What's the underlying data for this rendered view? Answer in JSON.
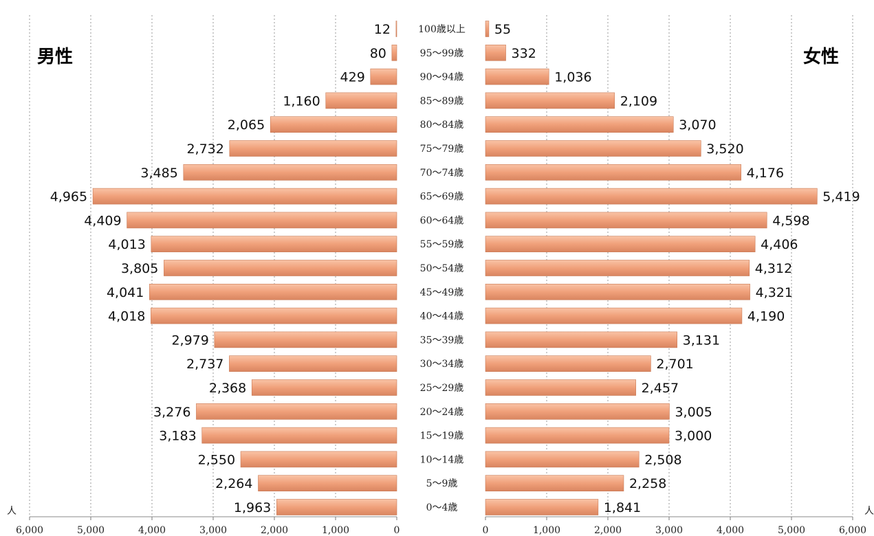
{
  "chart_data": {
    "type": "bar",
    "orientation": "horizontal-pyramid",
    "male_label": "男性",
    "female_label": "女性",
    "unit_label": "人",
    "categories": [
      "0～4歳",
      "5～9歳",
      "10～14歳",
      "15～19歳",
      "20～24歳",
      "25～29歳",
      "30～34歳",
      "35～39歳",
      "40～44歳",
      "45～49歳",
      "50～54歳",
      "55～59歳",
      "60～64歳",
      "65～69歳",
      "70～74歳",
      "75～79歳",
      "80～84歳",
      "85～89歳",
      "90～94歳",
      "95～99歳",
      "100歳以上"
    ],
    "series": [
      {
        "name": "男性",
        "values": [
          1963,
          2264,
          2550,
          3183,
          3276,
          2368,
          2737,
          2979,
          4018,
          4041,
          3805,
          4013,
          4409,
          4965,
          3485,
          2732,
          2065,
          1160,
          429,
          80,
          12
        ],
        "labels": [
          "1,963",
          "2,264",
          "2,550",
          "3,183",
          "3,276",
          "2,368",
          "2,737",
          "2,979",
          "4,018",
          "4,041",
          "3,805",
          "4,013",
          "4,409",
          "4,965",
          "3,485",
          "2,732",
          "2,065",
          "1,160",
          "429",
          "80",
          "12"
        ]
      },
      {
        "name": "女性",
        "values": [
          1841,
          2258,
          2508,
          3000,
          3005,
          2457,
          2701,
          3131,
          4190,
          4321,
          4312,
          4406,
          4598,
          5419,
          4176,
          3520,
          3070,
          2109,
          1036,
          332,
          55
        ],
        "labels": [
          "1,841",
          "2,258",
          "2,508",
          "3,000",
          "3,005",
          "2,457",
          "2,701",
          "3,131",
          "4,190",
          "4,321",
          "4,312",
          "4,406",
          "4,598",
          "5,419",
          "4,176",
          "3,520",
          "3,070",
          "2,109",
          "1,036",
          "332",
          "55"
        ]
      }
    ],
    "xlim": [
      0,
      6000
    ],
    "x_ticks": [
      0,
      1000,
      2000,
      3000,
      4000,
      5000,
      6000
    ],
    "x_tick_labels": [
      "0",
      "1,000",
      "2,000",
      "3,000",
      "4,000",
      "5,000",
      "6,000"
    ],
    "grid": true,
    "bar_color": "#f0a07a",
    "bar_edge_color": "#c97a55"
  }
}
